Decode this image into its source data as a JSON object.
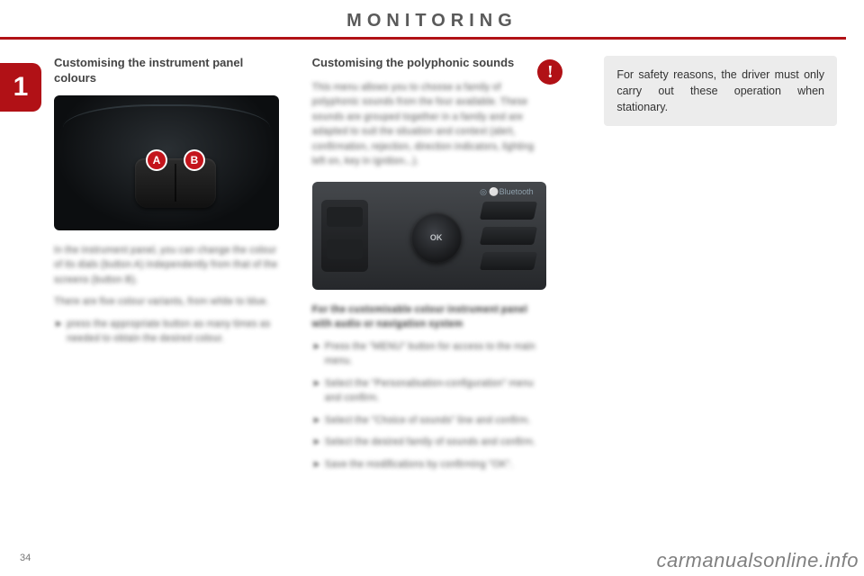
{
  "header": {
    "title": "MONITORING"
  },
  "side_tab": "1",
  "page_number": "34",
  "watermark": "carmanualsonline.info",
  "col1": {
    "heading": "Customising the instrument panel colours",
    "markers": {
      "a": "A",
      "b": "B"
    },
    "para1": "In the instrument panel, you can change the colour of its dials (button A) independently from that of the screens (button B).",
    "para2": "There are five colour variants, from white to blue.",
    "bullet1": "press the appropriate button as many times as needed to obtain the desired colour."
  },
  "col2": {
    "heading": "Customising the polyphonic sounds",
    "intro": "This menu allows you to choose a family of polyphonic sounds from the four available. These sounds are grouped together in a family and are adapted to suit the situation and context (alert, confirmation, rejection, direction indicators, lighting left on, key in ignition...).",
    "wheel_label": "OK",
    "top_icons": "◎   ⚪Bluetooth",
    "subhead": "For the customisable colour instrument panel with audio or navigation system",
    "bullets": [
      "Press the \"MENU\" button for access to the main menu.",
      "Select the \"Personalisation-configuration\" menu and confirm.",
      "Select the \"Choice of sounds\" line and confirm.",
      "Select the desired family of sounds and confirm.",
      "Save the modifications by confirming \"OK\"."
    ]
  },
  "warning": {
    "icon": "!",
    "text": "For safety reasons, the driver must only carry out these operation when stationary."
  }
}
